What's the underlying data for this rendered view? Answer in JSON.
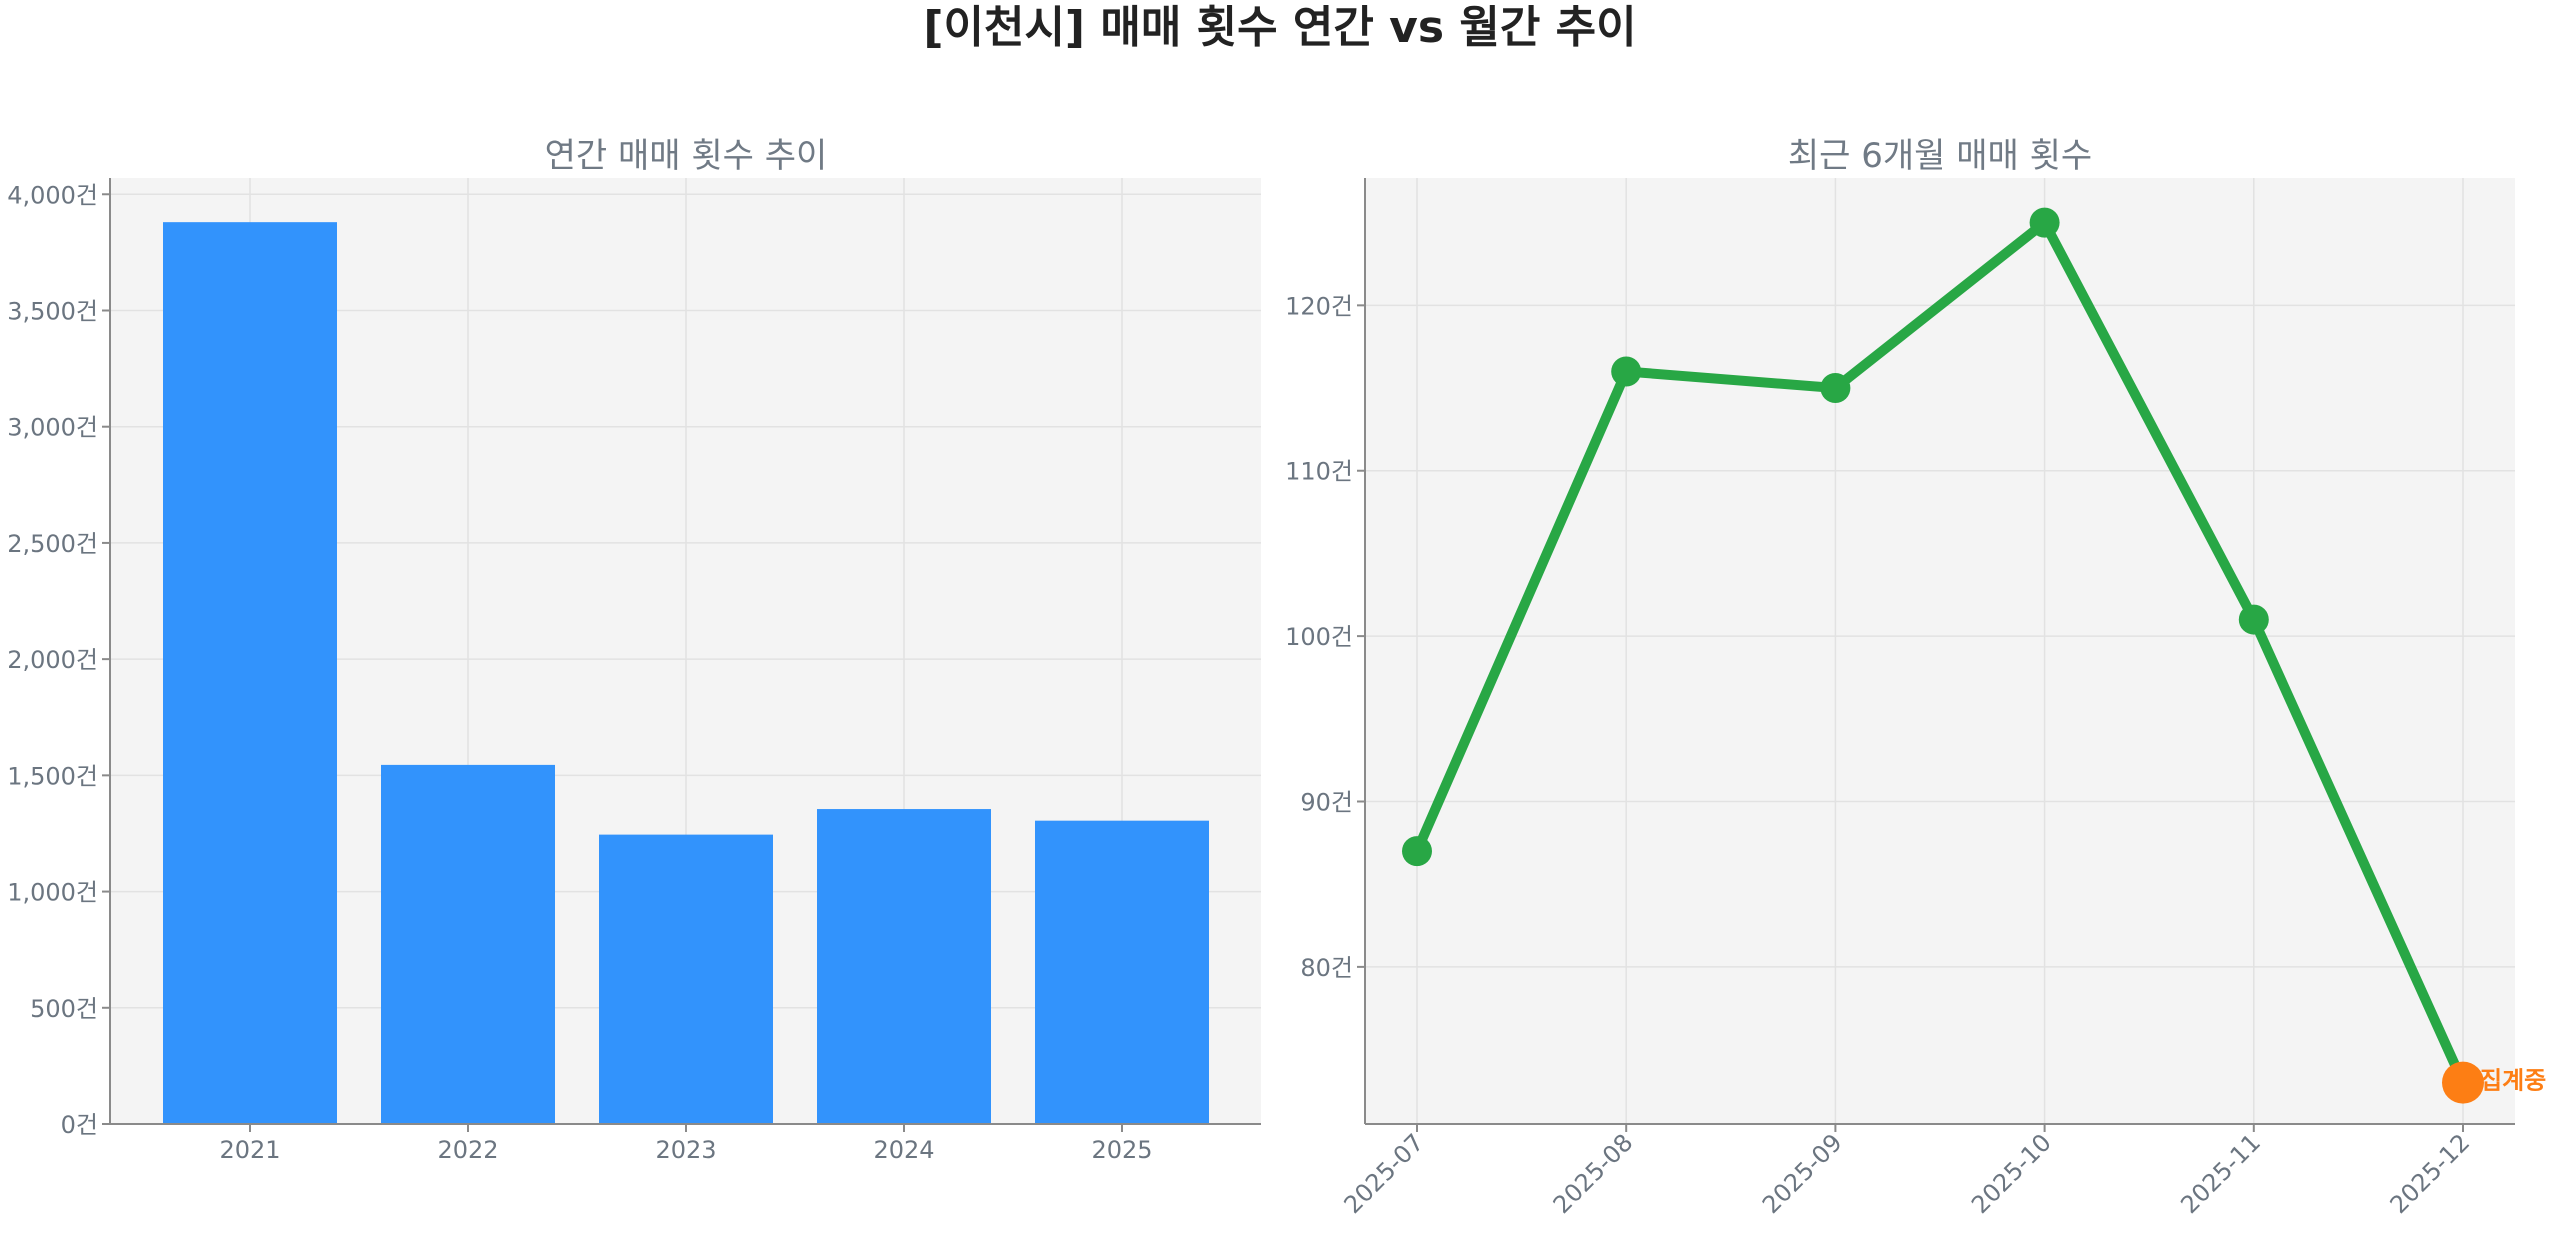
{
  "title": "[이천시] 매매 횟수 연간 vs 월간 추이",
  "colors": {
    "bar": "#3293fc",
    "line": "#28a745",
    "highlight": "#fd7e14",
    "panel_bg": "#f4f4f4",
    "grid": "#e2e2e2",
    "axis": "#8a8a8a"
  },
  "chart_data": [
    {
      "type": "bar",
      "title": "연간 매매 횟수 추이",
      "categories": [
        "2021",
        "2022",
        "2023",
        "2024",
        "2025"
      ],
      "values": [
        3880,
        1545,
        1245,
        1355,
        1305
      ],
      "ylim": [
        0,
        4070
      ],
      "yticks": [
        0,
        500,
        1000,
        1500,
        2000,
        2500,
        3000,
        3500,
        4000
      ],
      "ytick_labels": [
        "0건",
        "500건",
        "1,000건",
        "1,500건",
        "2,000건",
        "2,500건",
        "3,000건",
        "3,500건",
        "4,000건"
      ],
      "grid": true,
      "color": "#3293fc"
    },
    {
      "type": "line",
      "title": "최근 6개월 매매 횟수",
      "x": [
        "2025-07",
        "2025-08",
        "2025-09",
        "2025-10",
        "2025-11",
        "2025-12"
      ],
      "values": [
        87,
        116,
        115,
        125,
        101,
        73
      ],
      "ylim": [
        70.5,
        127.7
      ],
      "yticks": [
        80,
        90,
        100,
        110,
        120
      ],
      "ytick_labels": [
        "80건",
        "90건",
        "100건",
        "110건",
        "120건"
      ],
      "grid": true,
      "color": "#28a745",
      "annotation": {
        "x": "2025-12",
        "y": 73,
        "text": "집계중",
        "color": "#fd7e14"
      }
    }
  ]
}
